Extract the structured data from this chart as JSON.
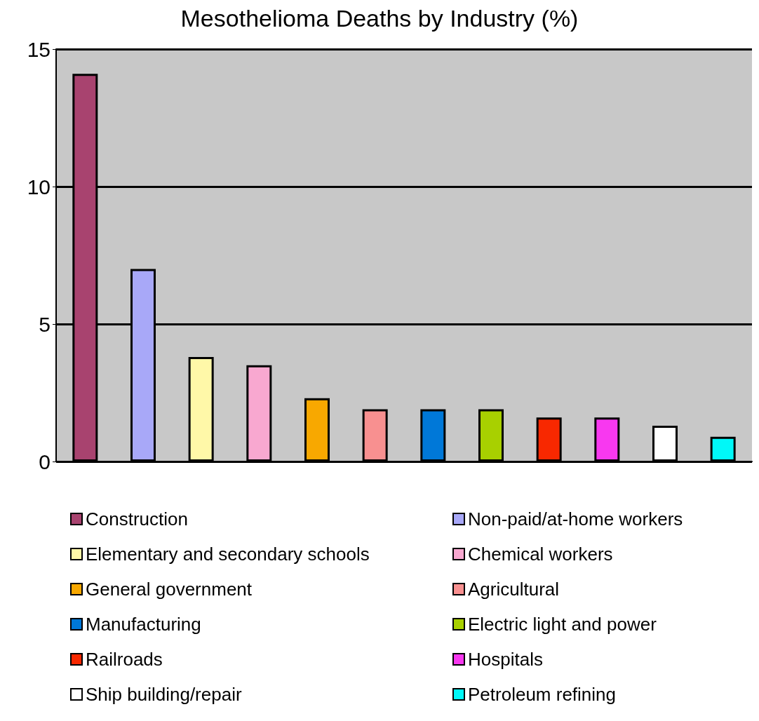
{
  "chart_data": {
    "type": "bar",
    "title": "Mesothelioma Deaths by Industry (%)",
    "categories": [
      null,
      null,
      null,
      null,
      null,
      null,
      null,
      null,
      null,
      null,
      null,
      null
    ],
    "stacked": true,
    "series": [
      {
        "name": "Construction",
        "color": "#a8436f",
        "values": [
          14.1,
          null,
          null,
          null,
          null,
          null,
          null,
          null,
          null,
          null,
          null,
          null
        ]
      },
      {
        "name": "Non-paid/at-home workers",
        "color": "#a8a8f8",
        "values": [
          null,
          7.0,
          null,
          null,
          null,
          null,
          null,
          null,
          null,
          null,
          null,
          null
        ]
      },
      {
        "name": "Elementary and secondary schools",
        "color": "#fff8a8",
        "values": [
          null,
          null,
          3.8,
          null,
          null,
          null,
          null,
          null,
          null,
          null,
          null,
          null
        ]
      },
      {
        "name": "Chemical workers",
        "color": "#f8a8d0",
        "values": [
          null,
          null,
          null,
          3.5,
          null,
          null,
          null,
          null,
          null,
          null,
          null,
          null
        ]
      },
      {
        "name": "General government",
        "color": "#f8a800",
        "values": [
          null,
          null,
          null,
          null,
          2.3,
          null,
          null,
          null,
          null,
          null,
          null,
          null
        ]
      },
      {
        "name": "Agricultural",
        "color": "#f89090",
        "values": [
          null,
          null,
          null,
          null,
          null,
          1.9,
          null,
          null,
          null,
          null,
          null,
          null
        ]
      },
      {
        "name": "Manufacturing",
        "color": "#0078d8",
        "values": [
          null,
          null,
          null,
          null,
          null,
          null,
          1.9,
          null,
          null,
          null,
          null,
          null
        ]
      },
      {
        "name": "Electric light and power",
        "color": "#a8d000",
        "values": [
          null,
          null,
          null,
          null,
          null,
          null,
          null,
          1.9,
          null,
          null,
          null,
          null
        ]
      },
      {
        "name": "Railroads",
        "color": "#f82800",
        "values": [
          null,
          null,
          null,
          null,
          null,
          null,
          null,
          null,
          1.6,
          null,
          null,
          null
        ]
      },
      {
        "name": "Hospitals",
        "color": "#f838f0",
        "values": [
          null,
          null,
          null,
          null,
          null,
          null,
          null,
          null,
          null,
          1.6,
          null,
          null
        ]
      },
      {
        "name": "Ship building/repair",
        "color": "#ffffff",
        "values": [
          null,
          null,
          null,
          null,
          null,
          null,
          null,
          null,
          null,
          null,
          1.3,
          null
        ]
      },
      {
        "name": "Petroleum refining",
        "color": "#00f8f8",
        "values": [
          null,
          null,
          null,
          null,
          null,
          null,
          null,
          null,
          null,
          null,
          null,
          0.9
        ]
      }
    ],
    "ylim": [
      0,
      15
    ],
    "yticks": [
      0,
      5,
      10,
      15
    ],
    "grid": "y",
    "legend": "bottom",
    "tick_labels": "y"
  }
}
